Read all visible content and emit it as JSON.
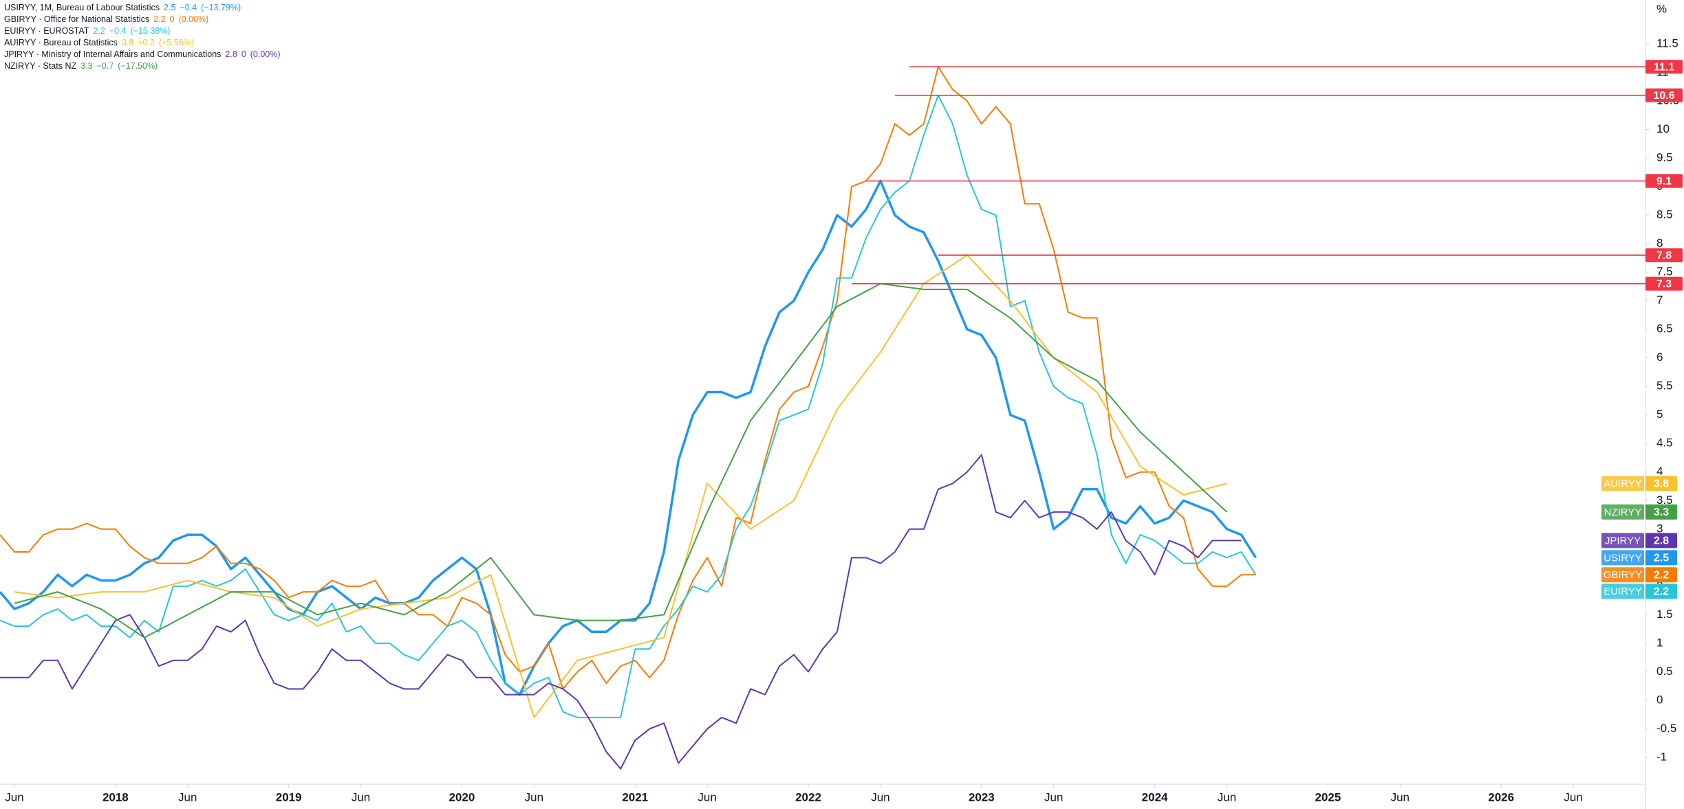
{
  "chart_data": {
    "type": "line",
    "unit_label": "%",
    "xlim": [
      "2017-05",
      "2026-11"
    ],
    "ylim": [
      -1.47,
      12.27
    ],
    "grid": false,
    "yticks": [
      -1,
      -0.5,
      0,
      0.5,
      1,
      1.5,
      2,
      2.5,
      3,
      3.5,
      4,
      4.5,
      5,
      5.5,
      6,
      6.5,
      7,
      7.5,
      8,
      8.5,
      9,
      9.5,
      10,
      10.5,
      11,
      11.5
    ],
    "xticks": [
      {
        "value": "2017-06",
        "label": "Jun"
      },
      {
        "value": "2018-01",
        "label": "2018"
      },
      {
        "value": "2018-06",
        "label": "Jun"
      },
      {
        "value": "2019-01",
        "label": "2019"
      },
      {
        "value": "2019-06",
        "label": "Jun"
      },
      {
        "value": "2020-01",
        "label": "2020"
      },
      {
        "value": "2020-06",
        "label": "Jun"
      },
      {
        "value": "2021-01",
        "label": "2021"
      },
      {
        "value": "2021-06",
        "label": "Jun"
      },
      {
        "value": "2022-01",
        "label": "2022"
      },
      {
        "value": "2022-06",
        "label": "Jun"
      },
      {
        "value": "2023-01",
        "label": "2023"
      },
      {
        "value": "2023-06",
        "label": "Jun"
      },
      {
        "value": "2024-01",
        "label": "2024"
      },
      {
        "value": "2024-06",
        "label": "Jun"
      },
      {
        "value": "2025-01",
        "label": "2025"
      },
      {
        "value": "2025-06",
        "label": "Jun"
      },
      {
        "value": "2026-01",
        "label": "2026"
      },
      {
        "value": "2026-06",
        "label": "Jun"
      }
    ],
    "hlines": [
      {
        "value": 11.1,
        "start": "2022-08",
        "color": "#f23645"
      },
      {
        "value": 10.6,
        "start": "2022-07",
        "color": "#f23645"
      },
      {
        "value": 9.1,
        "start": "2022-05",
        "color": "#f23645"
      },
      {
        "value": 7.8,
        "start": "2022-10",
        "color": "#f23645"
      },
      {
        "value": 7.3,
        "start": "2022-04",
        "color": "#f23645"
      }
    ],
    "x": [
      "2017-05",
      "2017-06",
      "2017-07",
      "2017-08",
      "2017-09",
      "2017-10",
      "2017-11",
      "2017-12",
      "2018-01",
      "2018-02",
      "2018-03",
      "2018-04",
      "2018-05",
      "2018-06",
      "2018-07",
      "2018-08",
      "2018-09",
      "2018-10",
      "2018-11",
      "2018-12",
      "2019-01",
      "2019-02",
      "2019-03",
      "2019-04",
      "2019-05",
      "2019-06",
      "2019-07",
      "2019-08",
      "2019-09",
      "2019-10",
      "2019-11",
      "2019-12",
      "2020-01",
      "2020-02",
      "2020-03",
      "2020-04",
      "2020-05",
      "2020-06",
      "2020-07",
      "2020-08",
      "2020-09",
      "2020-10",
      "2020-11",
      "2020-12",
      "2021-01",
      "2021-02",
      "2021-03",
      "2021-04",
      "2021-05",
      "2021-06",
      "2021-07",
      "2021-08",
      "2021-09",
      "2021-10",
      "2021-11",
      "2021-12",
      "2022-01",
      "2022-02",
      "2022-03",
      "2022-04",
      "2022-05",
      "2022-06",
      "2022-07",
      "2022-08",
      "2022-09",
      "2022-10",
      "2022-11",
      "2022-12",
      "2023-01",
      "2023-02",
      "2023-03",
      "2023-04",
      "2023-05",
      "2023-06",
      "2023-07",
      "2023-08",
      "2023-09",
      "2023-10",
      "2023-11",
      "2023-12",
      "2024-01",
      "2024-02",
      "2024-03",
      "2024-04",
      "2024-05",
      "2024-06",
      "2024-07",
      "2024-08"
    ],
    "series": [
      {
        "name": "USIRYY, 1M, Bureau of Labour Statistics",
        "symbol": "USIRYY",
        "color": "#2196f3",
        "width": 3.5,
        "change": {
          "value": -0.4,
          "label": "−0.4"
        },
        "change_pct": {
          "value": -13.79,
          "label": "(−13.79%)"
        },
        "values": [
          1.9,
          1.6,
          1.7,
          1.9,
          2.2,
          2.0,
          2.2,
          2.1,
          2.1,
          2.2,
          2.4,
          2.5,
          2.8,
          2.9,
          2.9,
          2.7,
          2.3,
          2.5,
          2.2,
          1.9,
          1.6,
          1.5,
          1.9,
          2.0,
          1.8,
          1.6,
          1.8,
          1.7,
          1.7,
          1.8,
          2.1,
          2.3,
          2.5,
          2.3,
          1.5,
          0.3,
          0.1,
          0.6,
          1.0,
          1.3,
          1.4,
          1.2,
          1.2,
          1.4,
          1.4,
          1.7,
          2.6,
          4.2,
          5.0,
          5.4,
          5.4,
          5.3,
          5.4,
          6.2,
          6.8,
          7.0,
          7.5,
          7.9,
          8.5,
          8.3,
          8.6,
          9.1,
          8.5,
          8.3,
          8.2,
          7.7,
          7.1,
          6.5,
          6.4,
          6.0,
          5.0,
          4.9,
          4.0,
          3.0,
          3.2,
          3.7,
          3.7,
          3.2,
          3.1,
          3.4,
          3.1,
          3.2,
          3.5,
          3.4,
          3.3,
          3.0,
          2.9,
          2.5
        ]
      },
      {
        "name": "GBIRYY · Office for National Statistics",
        "symbol": "GBIRYY",
        "color": "#f57c00",
        "width": 2,
        "change": {
          "value": 0,
          "label": "0"
        },
        "change_pct": {
          "value": 0,
          "label": "(0.00%)"
        },
        "values": [
          2.9,
          2.6,
          2.6,
          2.9,
          3.0,
          3.0,
          3.1,
          3.0,
          3.0,
          2.7,
          2.5,
          2.4,
          2.4,
          2.4,
          2.5,
          2.7,
          2.4,
          2.4,
          2.3,
          2.1,
          1.8,
          1.9,
          1.9,
          2.1,
          2.0,
          2.0,
          2.1,
          1.7,
          1.7,
          1.5,
          1.5,
          1.3,
          1.8,
          1.7,
          1.5,
          0.8,
          0.5,
          0.6,
          1.0,
          0.2,
          0.5,
          0.7,
          0.3,
          0.6,
          0.7,
          0.4,
          0.7,
          1.5,
          2.1,
          2.5,
          2.0,
          3.2,
          3.1,
          4.2,
          5.1,
          5.4,
          5.5,
          6.2,
          7.0,
          9.0,
          9.1,
          9.4,
          10.1,
          9.9,
          10.1,
          11.1,
          10.7,
          10.5,
          10.1,
          10.4,
          10.1,
          8.7,
          8.7,
          7.9,
          6.8,
          6.7,
          6.7,
          4.6,
          3.9,
          4.0,
          4.0,
          3.4,
          3.2,
          2.3,
          2.0,
          2.0,
          2.2,
          2.2
        ]
      },
      {
        "name": "EUIRYY · EUROSTAT",
        "symbol": "EUIRYY",
        "color": "#26c6da",
        "width": 2,
        "change": {
          "value": -0.4,
          "label": "−0.4"
        },
        "change_pct": {
          "value": -15.38,
          "label": "(−15.38%)"
        },
        "values": [
          1.4,
          1.3,
          1.3,
          1.5,
          1.6,
          1.4,
          1.5,
          1.3,
          1.3,
          1.1,
          1.4,
          1.2,
          2.0,
          2.0,
          2.1,
          2.0,
          2.1,
          2.3,
          1.9,
          1.5,
          1.4,
          1.5,
          1.4,
          1.7,
          1.2,
          1.3,
          1.0,
          1.0,
          0.8,
          0.7,
          1.0,
          1.3,
          1.4,
          1.2,
          0.7,
          0.3,
          0.1,
          0.3,
          0.4,
          -0.2,
          -0.3,
          -0.3,
          -0.3,
          -0.3,
          0.9,
          0.9,
          1.3,
          1.6,
          2.0,
          1.9,
          2.2,
          3.0,
          3.4,
          4.1,
          4.9,
          5.0,
          5.1,
          5.9,
          7.4,
          7.4,
          8.1,
          8.6,
          8.9,
          9.1,
          9.9,
          10.6,
          10.1,
          9.2,
          8.6,
          8.5,
          6.9,
          7.0,
          6.1,
          5.5,
          5.3,
          5.2,
          4.3,
          2.9,
          2.4,
          2.9,
          2.8,
          2.6,
          2.4,
          2.4,
          2.6,
          2.5,
          2.6,
          2.2
        ]
      },
      {
        "name": "AUIRYY · Bureau of Statistics",
        "symbol": "AUIRYY",
        "color": "#fbc02d",
        "width": 2,
        "change": {
          "value": 0.2,
          "label": "+0.2"
        },
        "change_pct": {
          "value": 5.56,
          "label": "(+5.56%)"
        },
        "x": [
          "2017-06",
          "2017-09",
          "2017-12",
          "2018-03",
          "2018-06",
          "2018-09",
          "2018-12",
          "2019-03",
          "2019-06",
          "2019-09",
          "2019-12",
          "2020-03",
          "2020-06",
          "2020-09",
          "2020-12",
          "2021-03",
          "2021-06",
          "2021-09",
          "2021-12",
          "2022-03",
          "2022-06",
          "2022-09",
          "2022-12",
          "2023-03",
          "2023-06",
          "2023-09",
          "2023-12",
          "2024-03",
          "2024-06"
        ],
        "values": [
          1.9,
          1.8,
          1.9,
          1.9,
          2.1,
          1.9,
          1.8,
          1.3,
          1.6,
          1.7,
          1.8,
          2.2,
          -0.3,
          0.7,
          0.9,
          1.1,
          3.8,
          3.0,
          3.5,
          5.1,
          6.1,
          7.3,
          7.8,
          7.0,
          6.0,
          5.4,
          4.1,
          3.6,
          3.8
        ]
      },
      {
        "name": "JPIRYY · Ministry of Internal Affairs and Communications",
        "symbol": "JPIRYY",
        "color": "#5e35b1",
        "width": 2,
        "change": {
          "value": 0,
          "label": "0"
        },
        "change_pct": {
          "value": 0,
          "label": "(0.00%)"
        },
        "values": [
          0.4,
          0.4,
          0.4,
          0.7,
          0.7,
          0.2,
          0.6,
          1.0,
          1.4,
          1.5,
          1.1,
          0.6,
          0.7,
          0.7,
          0.9,
          1.3,
          1.2,
          1.4,
          0.8,
          0.3,
          0.2,
          0.2,
          0.5,
          0.9,
          0.7,
          0.7,
          0.5,
          0.3,
          0.2,
          0.2,
          0.5,
          0.8,
          0.7,
          0.4,
          0.4,
          0.1,
          0.1,
          0.1,
          0.3,
          0.2,
          0.0,
          -0.4,
          -0.9,
          -1.2,
          -0.7,
          -0.5,
          -0.4,
          -1.1,
          -0.8,
          -0.5,
          -0.3,
          -0.4,
          0.2,
          0.1,
          0.6,
          0.8,
          0.5,
          0.9,
          1.2,
          2.5,
          2.5,
          2.4,
          2.6,
          3.0,
          3.0,
          3.7,
          3.8,
          4.0,
          4.3,
          3.3,
          3.2,
          3.5,
          3.2,
          3.3,
          3.3,
          3.2,
          3.0,
          3.3,
          2.8,
          2.6,
          2.2,
          2.8,
          2.7,
          2.5,
          2.8,
          2.8,
          2.8,
          null
        ]
      },
      {
        "name": "NZIRYY · Stats NZ",
        "symbol": "NZIRYY",
        "color": "#43a047",
        "width": 2,
        "change": {
          "value": -0.7,
          "label": "−0.7"
        },
        "change_pct": {
          "value": -17.5,
          "label": "(−17.50%)"
        },
        "x": [
          "2017-06",
          "2017-09",
          "2017-12",
          "2018-03",
          "2018-06",
          "2018-09",
          "2018-12",
          "2019-03",
          "2019-06",
          "2019-09",
          "2019-12",
          "2020-03",
          "2020-06",
          "2020-09",
          "2020-12",
          "2021-03",
          "2021-06",
          "2021-09",
          "2021-12",
          "2022-03",
          "2022-06",
          "2022-09",
          "2022-12",
          "2023-03",
          "2023-06",
          "2023-09",
          "2023-12",
          "2024-03",
          "2024-06"
        ],
        "values": [
          1.7,
          1.9,
          1.6,
          1.1,
          1.5,
          1.9,
          1.9,
          1.5,
          1.7,
          1.5,
          1.9,
          2.5,
          1.5,
          1.4,
          1.4,
          1.5,
          3.3,
          4.9,
          5.9,
          6.9,
          7.3,
          7.2,
          7.2,
          6.7,
          6.0,
          5.6,
          4.7,
          4.0,
          3.3
        ]
      }
    ]
  }
}
